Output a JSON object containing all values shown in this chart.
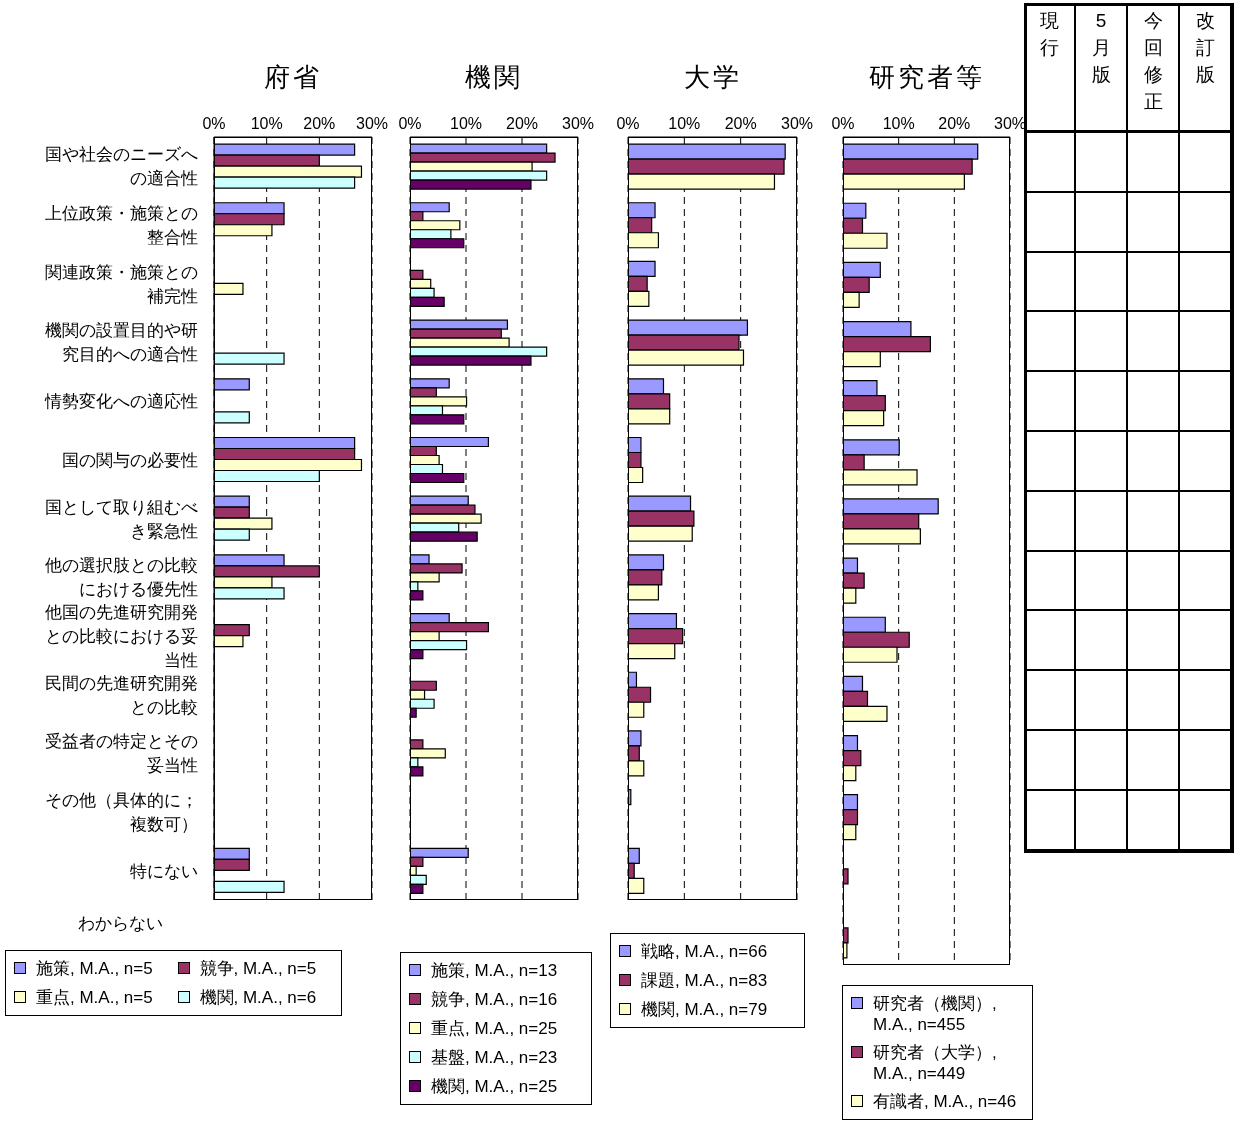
{
  "chart_data": [
    {
      "type": "bar",
      "orientation": "horizontal",
      "title": "府省",
      "categories": [
        "国や社会のニーズへの適合性",
        "上位政策・施策との整合性",
        "関連政策・施策との補完性",
        "機関の設置目的や研究目的への適合性",
        "情勢変化への適応性",
        "国の関与の必要性",
        "国として取り組むべき緊急性",
        "他の選択肢との比較における優先性",
        "他国の先進研究開発との比較における妥当性",
        "民間の先進研究開発との比較",
        "受益者の特定とその妥当性",
        "その他（具体的に；複数可）",
        "特にない"
      ],
      "series": [
        {
          "name": "施策, M.A., n=5",
          "color": "#9999ff",
          "values": [
            26.7,
            13.3,
            0,
            0,
            6.7,
            26.7,
            6.7,
            13.3,
            0,
            0,
            0,
            0,
            6.7
          ]
        },
        {
          "name": "競争, M.A., n=5",
          "color": "#993366",
          "values": [
            20,
            13.3,
            0,
            0,
            0,
            26.7,
            6.7,
            20,
            6.7,
            0,
            0,
            0,
            6.7
          ]
        },
        {
          "name": "重点, M.A., n=5",
          "color": "#ffffcc",
          "values": [
            28,
            11,
            5.5,
            0,
            0,
            28,
            11,
            11,
            5.5,
            0,
            0,
            0,
            0
          ]
        },
        {
          "name": "機関, M.A., n=6",
          "color": "#ccffff",
          "values": [
            26.7,
            0,
            0,
            13.3,
            6.7,
            20,
            6.7,
            13.3,
            0,
            0,
            0,
            0,
            13.3
          ]
        }
      ],
      "xlim": [
        0,
        30
      ],
      "xticks": [
        {
          "value": 0,
          "label": "0%"
        },
        {
          "value": 10,
          "label": "10%"
        },
        {
          "value": 20,
          "label": "20%"
        },
        {
          "value": 30,
          "label": "30%"
        }
      ],
      "grid": "x",
      "legend": "bottom",
      "annotations": [
        "わからない"
      ]
    },
    {
      "type": "bar",
      "orientation": "horizontal",
      "title": "機関",
      "categories": [
        "国や社会のニーズへの適合性",
        "上位政策・施策との整合性",
        "関連政策・施策との補完性",
        "機関の設置目的や研究目的への適合性",
        "情勢変化への適応性",
        "国の関与の必要性",
        "国として取り組むべき緊急性",
        "他の選択肢との比較における優先性",
        "他国の先進研究開発との比較における妥当性",
        "民間の先進研究開発との比較",
        "受益者の特定とその妥当性",
        "その他（具体的に；複数可）",
        "特にない"
      ],
      "series": [
        {
          "name": "施策, M.A., n=13",
          "color": "#9999ff",
          "values": [
            24.4,
            7,
            0,
            17.4,
            7,
            14,
            10.4,
            3.4,
            7,
            0,
            0,
            0,
            10.4
          ]
        },
        {
          "name": "競争, M.A., n=16",
          "color": "#993366",
          "values": [
            25.9,
            2.3,
            2.3,
            16.3,
            4.7,
            4.7,
            11.6,
            9.3,
            14,
            4.7,
            2.3,
            0,
            2.3
          ]
        },
        {
          "name": "重点, M.A., n=25",
          "color": "#ffffcc",
          "values": [
            21.8,
            8.9,
            3.7,
            17.7,
            10.1,
            5.2,
            12.7,
            5.2,
            5.2,
            2.6,
            6.3,
            0,
            1.1
          ]
        },
        {
          "name": "基盤, M.A., n=23",
          "color": "#ccffff",
          "values": [
            24.4,
            7.3,
            4.3,
            24.4,
            5.8,
            5.8,
            8.7,
            1.4,
            10.1,
            4.3,
            1.4,
            0,
            2.9
          ]
        },
        {
          "name": "機関, M.A., n=25",
          "color": "#660066",
          "values": [
            21.6,
            9.6,
            6.1,
            21.6,
            9.6,
            9.6,
            12,
            2.3,
            2.3,
            1.1,
            2.3,
            0,
            2.3
          ]
        }
      ],
      "xlim": [
        0,
        30
      ],
      "xticks": [
        {
          "value": 0,
          "label": "0%"
        },
        {
          "value": 10,
          "label": "10%"
        },
        {
          "value": 20,
          "label": "20%"
        },
        {
          "value": 30,
          "label": "30%"
        }
      ],
      "grid": "x",
      "legend": "bottom",
      "tick_labels": "x"
    },
    {
      "type": "bar",
      "orientation": "horizontal",
      "title": "大学",
      "categories": [
        "国や社会のニーズへの適合性",
        "上位政策・施策との整合性",
        "関連政策・施策との補完性",
        "機関の設置目的や研究目的への適合性",
        "情勢変化への適応性",
        "国の関与の必要性",
        "国として取り組むべき緊急性",
        "他の選択肢との比較における優先性",
        "他国の先進研究開発との比較における妥当性",
        "民間の先進研究開発との比較",
        "受益者の特定とその妥当性",
        "その他（具体的に；複数可）",
        "特にない"
      ],
      "series": [
        {
          "name": "戦略, M.A., n=66",
          "color": "#9999ff",
          "values": [
            27.9,
            4.8,
            4.8,
            21.2,
            6.3,
            2.3,
            11.1,
            6.3,
            8.6,
            1.5,
            2.3,
            0.5,
            2
          ]
        },
        {
          "name": "課題, M.A., n=83",
          "color": "#993366",
          "values": [
            27.7,
            4.2,
            3.4,
            19.7,
            7.4,
            2.3,
            11.7,
            6,
            9.7,
            4,
            2,
            0,
            1.1
          ]
        },
        {
          "name": "機関, M.A., n=79",
          "color": "#ffffcc",
          "values": [
            26,
            5.4,
            3.7,
            20.5,
            7.4,
            2.6,
            11.4,
            5.4,
            8.3,
            2.8,
            2.8,
            0,
            2.8
          ]
        }
      ],
      "xlim": [
        0,
        30
      ],
      "xticks": [
        {
          "value": 0,
          "label": "0%"
        },
        {
          "value": 10,
          "label": "10%"
        },
        {
          "value": 20,
          "label": "20%"
        },
        {
          "value": 30,
          "label": "30%"
        }
      ],
      "grid": "x",
      "legend": "bottom",
      "tick_labels": "x"
    },
    {
      "type": "bar",
      "orientation": "horizontal",
      "title": "研究者等",
      "categories": [
        "国や社会のニーズへの適合性",
        "上位政策・施策との整合性",
        "関連政策・施策との補完性",
        "機関の設置目的や研究目的への適合性",
        "情勢変化への適応性",
        "国の関与の必要性",
        "国として取り組むべき緊急性",
        "他の選択肢との比較における優先性",
        "他国の先進研究開発との比較における妥当性",
        "民間の先進研究開発との比較",
        "受益者の特定とその妥当性",
        "その他（具体的に；複数可）",
        "特にない",
        "わからない"
      ],
      "series": [
        {
          "name": "研究者（機関）, M.A., n=455",
          "color": "#9999ff",
          "values": [
            24.2,
            4.1,
            6.7,
            12.2,
            6.1,
            10.1,
            17.1,
            2.6,
            7.6,
            3.5,
            2.6,
            2.6,
            0,
            0
          ]
        },
        {
          "name": "研究者（大学）, M.A., n=449",
          "color": "#993366",
          "values": [
            23.2,
            3.5,
            4.7,
            15.7,
            7.6,
            3.8,
            13.6,
            3.8,
            11.9,
            4.4,
            3.2,
            2.6,
            0.9,
            0.9
          ]
        },
        {
          "name": "有識者, M.A., n=46",
          "color": "#ffffcc",
          "values": [
            21.8,
            7.9,
            2.9,
            6.7,
            7.3,
            13.3,
            13.9,
            2.3,
            9.7,
            7.9,
            2.3,
            2.3,
            0,
            0.7
          ]
        }
      ],
      "xlim": [
        0,
        30
      ],
      "xticks": [
        {
          "value": 0,
          "label": "0%"
        },
        {
          "value": 10,
          "label": "10%"
        },
        {
          "value": 20,
          "label": "20%"
        },
        {
          "value": 30,
          "label": "30%"
        }
      ],
      "grid": "x",
      "legend": "bottom",
      "tick_labels": "x"
    },
    {
      "type": "other",
      "annotations": [
        "現行",
        "5月版",
        "今回修正",
        "改訂版"
      ]
    }
  ]
}
